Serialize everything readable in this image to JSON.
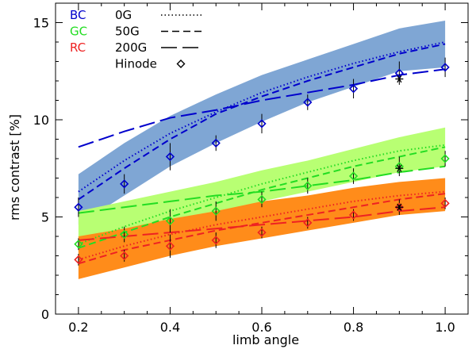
{
  "chart_data": {
    "type": "line",
    "xlabel": "limb angle",
    "ylabel": "rms contrast [%]",
    "xlim": [
      0.15,
      1.05
    ],
    "ylim": [
      0,
      16
    ],
    "xticks": [
      0.2,
      0.4,
      0.6,
      0.8,
      1.0
    ],
    "xtick_labels": [
      "0.2",
      "0.4",
      "0.6",
      "0.8",
      "1.0"
    ],
    "yticks": [
      0,
      5,
      10,
      15
    ],
    "ytick_labels": [
      "0",
      "5",
      "10",
      "15"
    ],
    "x": [
      0.2,
      0.3,
      0.4,
      0.5,
      0.6,
      0.7,
      0.8,
      0.9,
      1.0
    ],
    "channels": [
      {
        "name": "BC",
        "color": "#0000cc",
        "band_color": "#7fa6d4",
        "band_lower": [
          4.6,
          6.1,
          7.6,
          8.8,
          9.9,
          10.9,
          11.7,
          12.5,
          12.7
        ],
        "band_upper": [
          7.2,
          8.8,
          10.2,
          11.3,
          12.3,
          13.1,
          13.9,
          14.7,
          15.1
        ],
        "series": [
          {
            "name": "0G",
            "style": "dotted",
            "values": [
              6.3,
              7.9,
              9.3,
              10.4,
              11.4,
              12.2,
              12.9,
              13.5,
              14.0
            ]
          },
          {
            "name": "50G",
            "style": "dashed",
            "values": [
              5.9,
              7.5,
              9.0,
              10.3,
              11.2,
              12.0,
              12.7,
              13.4,
              13.9
            ]
          },
          {
            "name": "200G",
            "style": "longdash",
            "values": [
              8.6,
              9.4,
              10.1,
              10.5,
              11.0,
              11.4,
              11.8,
              12.3,
              12.6
            ]
          }
        ],
        "hinode": [
          5.5,
          6.7,
          8.1,
          8.8,
          9.8,
          10.9,
          11.6,
          12.4,
          12.7
        ],
        "hinode_err": [
          0.5,
          0.5,
          0.7,
          0.4,
          0.5,
          0.4,
          0.5,
          0.6,
          0.5
        ]
      },
      {
        "name": "GC",
        "color": "#22dd22",
        "band_color": "#b8ff73",
        "band_lower": [
          3.2,
          3.9,
          4.6,
          5.2,
          5.8,
          6.3,
          6.8,
          7.3,
          7.6
        ],
        "band_upper": [
          5.3,
          5.8,
          6.3,
          6.8,
          7.4,
          7.9,
          8.5,
          9.1,
          9.6
        ],
        "series": [
          {
            "name": "0G",
            "style": "dotted",
            "values": [
              3.6,
              4.5,
              5.3,
              6.0,
              6.7,
              7.3,
              7.9,
              8.4,
              8.7
            ]
          },
          {
            "name": "50G",
            "style": "dashed",
            "values": [
              3.4,
              4.2,
              5.0,
              5.7,
              6.4,
              7.0,
              7.6,
              8.1,
              8.6
            ]
          },
          {
            "name": "200G",
            "style": "longdash",
            "values": [
              5.2,
              5.5,
              5.8,
              6.1,
              6.3,
              6.6,
              6.9,
              7.3,
              7.6
            ]
          }
        ],
        "hinode": [
          3.6,
          4.1,
          4.8,
          5.3,
          5.9,
          6.6,
          7.1,
          7.6,
          8.0
        ],
        "hinode_err": [
          0.3,
          0.4,
          0.6,
          0.5,
          0.4,
          0.4,
          0.4,
          0.5,
          0.4
        ]
      },
      {
        "name": "RC",
        "color": "#ee2222",
        "band_color": "#ff8c1a",
        "band_lower": [
          1.8,
          2.4,
          3.0,
          3.5,
          3.9,
          4.3,
          4.7,
          5.1,
          5.3
        ],
        "band_upper": [
          4.0,
          4.4,
          4.9,
          5.3,
          5.8,
          6.1,
          6.5,
          6.8,
          7.0
        ],
        "series": [
          {
            "name": "0G",
            "style": "dotted",
            "values": [
              2.8,
              3.5,
              4.1,
              4.6,
              5.0,
              5.4,
              5.8,
              6.1,
              6.3
            ]
          },
          {
            "name": "50G",
            "style": "dashed",
            "values": [
              2.6,
              3.3,
              3.8,
              4.3,
              4.7,
              5.1,
              5.5,
              5.9,
              6.2
            ]
          },
          {
            "name": "200G",
            "style": "longdash",
            "values": [
              3.8,
              4.0,
              4.2,
              4.4,
              4.6,
              4.8,
              5.0,
              5.3,
              5.5
            ]
          }
        ],
        "hinode": [
          2.8,
          3.0,
          3.5,
          3.8,
          4.2,
          4.7,
          5.1,
          5.5,
          5.7
        ],
        "hinode_err": [
          0.3,
          0.3,
          0.6,
          0.4,
          0.3,
          0.3,
          0.3,
          0.4,
          0.3
        ]
      }
    ],
    "stars": [
      {
        "x": 0.9,
        "y": 12.1
      },
      {
        "x": 0.9,
        "y": 7.5
      },
      {
        "x": 0.9,
        "y": 5.5
      }
    ],
    "legend": {
      "placement": "top-left",
      "channels": [
        "BC",
        "GC",
        "RC"
      ],
      "styles": [
        "0G",
        "50G",
        "200G"
      ],
      "hinode_label": "Hinode"
    }
  }
}
